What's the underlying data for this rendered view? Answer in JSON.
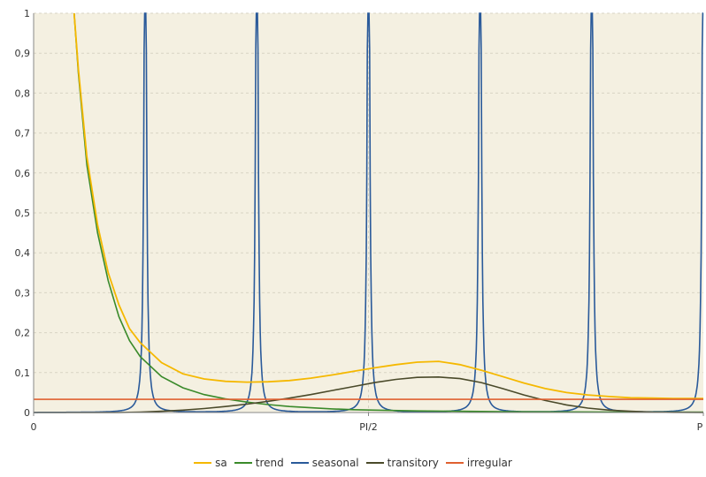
{
  "chart_data": {
    "type": "line",
    "title": "",
    "xlabel": "",
    "ylabel": "",
    "xlim": [
      0,
      3.14159
    ],
    "ylim": [
      0,
      1
    ],
    "grid": true,
    "legend_position": "bottom",
    "plot_background": "#f4f0e1",
    "x_ticks": [
      {
        "value": 0,
        "label": "0"
      },
      {
        "value": 1.5708,
        "label": "PI/2"
      },
      {
        "value": 3.14159,
        "label": "P"
      }
    ],
    "y_ticks": [
      {
        "value": 0,
        "label": "0"
      },
      {
        "value": 0.1,
        "label": "0,1"
      },
      {
        "value": 0.2,
        "label": "0,2"
      },
      {
        "value": 0.3,
        "label": "0,3"
      },
      {
        "value": 0.4,
        "label": "0,4"
      },
      {
        "value": 0.5,
        "label": "0,5"
      },
      {
        "value": 0.6,
        "label": "0,6"
      },
      {
        "value": 0.7,
        "label": "0,7"
      },
      {
        "value": 0.8,
        "label": "0,8"
      },
      {
        "value": 0.9,
        "label": "0,9"
      },
      {
        "value": 1,
        "label": "1"
      }
    ],
    "series": [
      {
        "name": "sa",
        "color": "#f5b800",
        "x": [
          0.19,
          0.21,
          0.25,
          0.3,
          0.35,
          0.4,
          0.45,
          0.5,
          0.6,
          0.7,
          0.8,
          0.9,
          1.0,
          1.1,
          1.2,
          1.3,
          1.4,
          1.5,
          1.6,
          1.7,
          1.8,
          1.9,
          2.0,
          2.1,
          2.2,
          2.3,
          2.4,
          2.5,
          2.6,
          2.7,
          2.8,
          2.9,
          3.0,
          3.14159
        ],
        "y": [
          1.0,
          0.86,
          0.64,
          0.47,
          0.35,
          0.27,
          0.21,
          0.175,
          0.125,
          0.097,
          0.084,
          0.078,
          0.076,
          0.077,
          0.08,
          0.086,
          0.094,
          0.103,
          0.112,
          0.12,
          0.126,
          0.128,
          0.12,
          0.106,
          0.09,
          0.074,
          0.06,
          0.05,
          0.044,
          0.04,
          0.037,
          0.036,
          0.035,
          0.035
        ]
      },
      {
        "name": "trend",
        "color": "#3a8a2a",
        "x": [
          0.19,
          0.21,
          0.25,
          0.3,
          0.35,
          0.4,
          0.45,
          0.5,
          0.6,
          0.7,
          0.8,
          0.9,
          1.0,
          1.1,
          1.2,
          1.3,
          1.4,
          1.5,
          1.6,
          1.8,
          2.0,
          2.2,
          2.5,
          2.8,
          3.14159
        ],
        "y": [
          1.0,
          0.85,
          0.62,
          0.45,
          0.33,
          0.24,
          0.18,
          0.14,
          0.09,
          0.062,
          0.045,
          0.034,
          0.026,
          0.02,
          0.015,
          0.012,
          0.009,
          0.007,
          0.006,
          0.004,
          0.003,
          0.002,
          0.0015,
          0.001,
          0.001
        ]
      },
      {
        "name": "seasonal",
        "color": "#2a5a9a",
        "peaks": [
          0.5236,
          1.0472,
          1.5708,
          2.0944,
          2.618,
          3.14159
        ],
        "baseline": 0,
        "peak_value": 1
      },
      {
        "name": "transitory",
        "color": "#4a4a2a",
        "x": [
          0,
          0.4,
          0.5,
          0.6,
          0.7,
          0.8,
          0.9,
          1.0,
          1.1,
          1.2,
          1.3,
          1.4,
          1.5,
          1.6,
          1.7,
          1.8,
          1.9,
          2.0,
          2.1,
          2.2,
          2.3,
          2.4,
          2.5,
          2.6,
          2.7,
          2.8,
          2.9,
          3.0,
          3.14159
        ],
        "y": [
          0,
          0,
          0.001,
          0.003,
          0.006,
          0.01,
          0.015,
          0.021,
          0.028,
          0.036,
          0.045,
          0.055,
          0.065,
          0.075,
          0.083,
          0.088,
          0.089,
          0.085,
          0.075,
          0.06,
          0.044,
          0.03,
          0.019,
          0.011,
          0.006,
          0.003,
          0.001,
          0.0005,
          0
        ]
      },
      {
        "name": "irregular",
        "color": "#e06030",
        "x": [
          0,
          3.14159
        ],
        "y": [
          0.033,
          0.033
        ]
      }
    ]
  }
}
